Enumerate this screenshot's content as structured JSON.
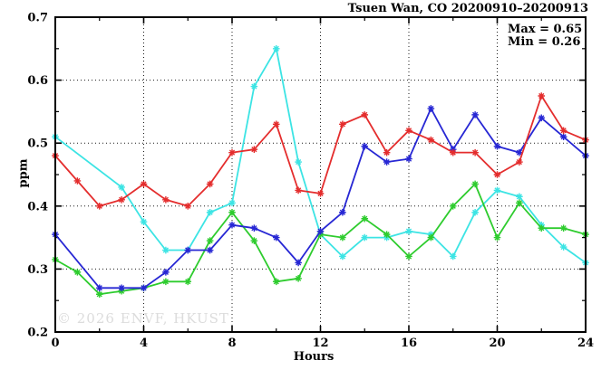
{
  "title": "Tsuen Wan, CO 20200910–20200913",
  "legend": {
    "max_label": "Max = 0.65",
    "min_label": "Min = 0.26"
  },
  "watermark": {
    "text": "© 2026 ENVF, HKUST",
    "color": "#dcdcdc"
  },
  "chart_data": {
    "type": "line",
    "title": "Tsuen Wan, CO 20200910–20200913",
    "xlabel": "Hours",
    "ylabel": "ppm",
    "xlim": [
      0,
      24
    ],
    "ylim": [
      0.2,
      0.7
    ],
    "grid": true,
    "grid_x": [
      4,
      8,
      12,
      16,
      20
    ],
    "grid_y": [
      0.3,
      0.4,
      0.5,
      0.6
    ],
    "x_ticks": [
      {
        "value": 0,
        "label": "0"
      },
      {
        "value": 4,
        "label": "4"
      },
      {
        "value": 8,
        "label": "8"
      },
      {
        "value": 12,
        "label": "12"
      },
      {
        "value": 16,
        "label": "16"
      },
      {
        "value": 20,
        "label": "20"
      },
      {
        "value": 24,
        "label": "24"
      }
    ],
    "x_minor_ticks": [
      2,
      6,
      10,
      14,
      18,
      22
    ],
    "y_ticks": [
      {
        "value": 0.2,
        "label": "0.2"
      },
      {
        "value": 0.3,
        "label": "0.3"
      },
      {
        "value": 0.4,
        "label": "0.4"
      },
      {
        "value": 0.5,
        "label": "0.5"
      },
      {
        "value": 0.6,
        "label": "0.6"
      },
      {
        "value": 0.7,
        "label": "0.7"
      }
    ],
    "y_minor_ticks": [
      0.25,
      0.35,
      0.45,
      0.55,
      0.65
    ],
    "stat_max": 0.65,
    "stat_min": 0.26,
    "marker": "asterisk",
    "x": [
      0,
      1,
      2,
      3,
      4,
      5,
      6,
      7,
      8,
      9,
      10,
      11,
      12,
      13,
      14,
      15,
      16,
      17,
      18,
      19,
      20,
      21,
      22,
      23,
      24
    ],
    "series": [
      {
        "name": "cyan",
        "color": "#3ce4e4",
        "values": [
          0.51,
          null,
          null,
          0.43,
          0.375,
          0.33,
          0.33,
          0.39,
          0.405,
          0.59,
          0.65,
          0.47,
          0.355,
          0.32,
          0.35,
          0.35,
          0.36,
          0.355,
          0.32,
          0.39,
          0.425,
          0.415,
          0.37,
          0.335,
          0.31
        ]
      },
      {
        "name": "green",
        "color": "#2ecc2e",
        "values": [
          0.315,
          0.295,
          0.26,
          0.265,
          0.27,
          0.28,
          0.28,
          0.345,
          0.39,
          0.345,
          0.28,
          0.285,
          0.355,
          0.35,
          0.38,
          0.355,
          0.32,
          0.35,
          0.4,
          0.435,
          0.35,
          0.405,
          0.365,
          0.365,
          0.355
        ]
      },
      {
        "name": "blue",
        "color": "#2727d4",
        "values": [
          0.355,
          null,
          0.27,
          0.27,
          0.27,
          0.295,
          0.33,
          0.33,
          0.37,
          0.365,
          0.35,
          0.31,
          0.36,
          0.39,
          0.495,
          0.47,
          0.475,
          0.555,
          0.49,
          0.545,
          0.495,
          0.485,
          0.54,
          0.51,
          0.48
        ]
      },
      {
        "name": "red",
        "color": "#e42d2d",
        "values": [
          0.48,
          0.44,
          0.4,
          0.41,
          0.435,
          0.41,
          0.4,
          0.435,
          0.485,
          0.49,
          0.53,
          0.425,
          0.42,
          0.53,
          0.545,
          0.485,
          0.52,
          0.505,
          0.485,
          0.485,
          0.45,
          0.47,
          0.575,
          0.52,
          0.505
        ]
      }
    ]
  }
}
